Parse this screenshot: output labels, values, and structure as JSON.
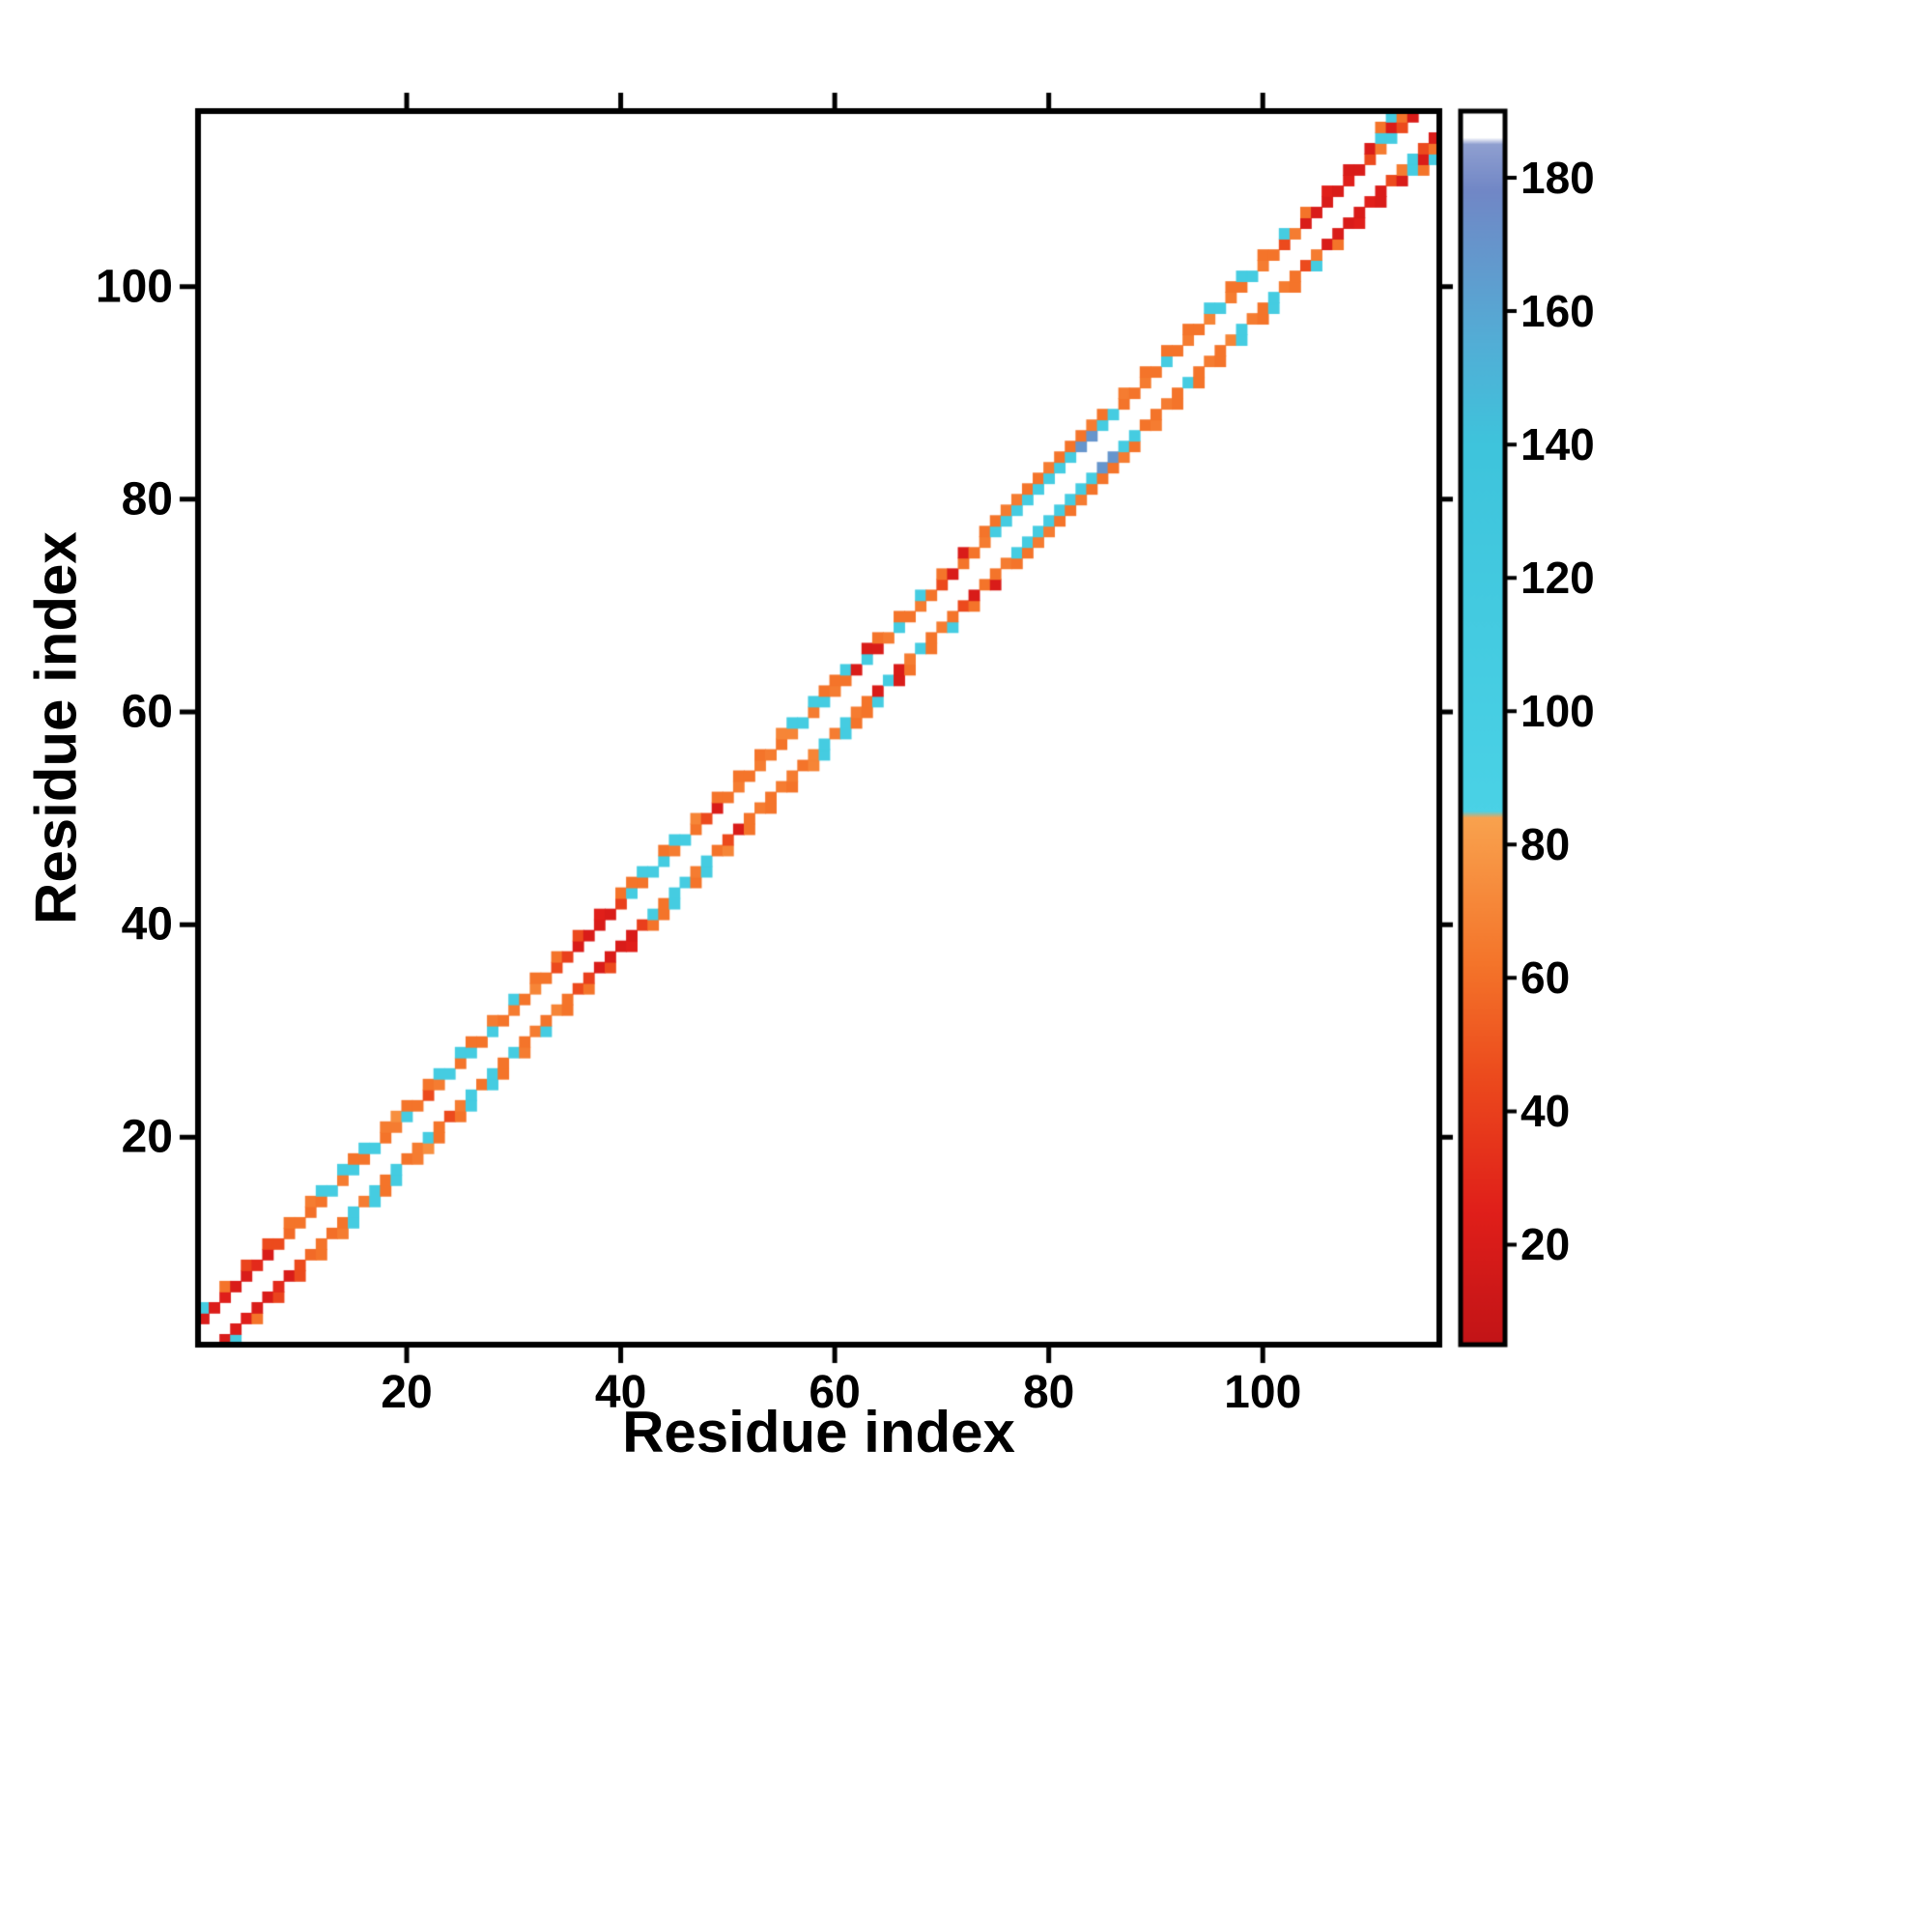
{
  "chart_data": {
    "type": "heatmap",
    "title": "",
    "xlabel": "Residue index",
    "ylabel": "Residue index",
    "xlim": [
      0.5,
      116.5
    ],
    "ylim": [
      0.5,
      116.5
    ],
    "x_ticks": [
      20,
      40,
      60,
      80,
      100
    ],
    "y_ticks": [
      20,
      40,
      60,
      80,
      100
    ],
    "grid": false,
    "symmetric": true,
    "background_value_color": "#ffffff",
    "colorbar": {
      "ticks": [
        20,
        40,
        60,
        80,
        100,
        120,
        140,
        160,
        180
      ],
      "vmin": 5,
      "vmax": 190,
      "stops": [
        [
          5,
          "#c21417"
        ],
        [
          25,
          "#e01f1a"
        ],
        [
          45,
          "#ec4a1d"
        ],
        [
          62,
          "#f4742a"
        ],
        [
          84,
          "#f9a24e"
        ],
        [
          85,
          "#4ad2e6"
        ],
        [
          140,
          "#3ec4dc"
        ],
        [
          155,
          "#52aed6"
        ],
        [
          178,
          "#7187c6"
        ],
        [
          185,
          "#8f9fd0"
        ],
        [
          186,
          "#ffffff"
        ],
        [
          190,
          "#ffffff"
        ]
      ]
    },
    "cells": [
      [
        1,
        3,
        20
      ],
      [
        1,
        4,
        110
      ],
      [
        2,
        4,
        22
      ],
      [
        3,
        5,
        24
      ],
      [
        3,
        6,
        62
      ],
      [
        4,
        6,
        20
      ],
      [
        5,
        7,
        20
      ],
      [
        5,
        8,
        42
      ],
      [
        6,
        8,
        30
      ],
      [
        7,
        9,
        20
      ],
      [
        7,
        10,
        45
      ],
      [
        8,
        10,
        45
      ],
      [
        9,
        11,
        58
      ],
      [
        9,
        12,
        62
      ],
      [
        10,
        12,
        62
      ],
      [
        11,
        13,
        60
      ],
      [
        11,
        14,
        66
      ],
      [
        12,
        14,
        62
      ],
      [
        12,
        15,
        110
      ],
      [
        13,
        15,
        110
      ],
      [
        14,
        16,
        66
      ],
      [
        14,
        17,
        110
      ],
      [
        15,
        17,
        110
      ],
      [
        15,
        18,
        62
      ],
      [
        16,
        18,
        62
      ],
      [
        16,
        19,
        110
      ],
      [
        17,
        19,
        110
      ],
      [
        18,
        20,
        62
      ],
      [
        18,
        21,
        66
      ],
      [
        19,
        21,
        66
      ],
      [
        19,
        22,
        75
      ],
      [
        20,
        22,
        110
      ],
      [
        20,
        23,
        62
      ],
      [
        21,
        23,
        62
      ],
      [
        22,
        24,
        45
      ],
      [
        22,
        25,
        62
      ],
      [
        23,
        25,
        66
      ],
      [
        23,
        26,
        110
      ],
      [
        24,
        26,
        110
      ],
      [
        25,
        27,
        62
      ],
      [
        25,
        28,
        110
      ],
      [
        26,
        28,
        110
      ],
      [
        26,
        29,
        62
      ],
      [
        27,
        29,
        62
      ],
      [
        28,
        30,
        110
      ],
      [
        28,
        31,
        66
      ],
      [
        29,
        31,
        62
      ],
      [
        30,
        32,
        66
      ],
      [
        30,
        33,
        110
      ],
      [
        31,
        33,
        62
      ],
      [
        32,
        34,
        70
      ],
      [
        32,
        35,
        62
      ],
      [
        33,
        35,
        62
      ],
      [
        34,
        36,
        45
      ],
      [
        34,
        37,
        62
      ],
      [
        35,
        37,
        40
      ],
      [
        36,
        38,
        20
      ],
      [
        36,
        39,
        45
      ],
      [
        37,
        39,
        20
      ],
      [
        38,
        40,
        20
      ],
      [
        38,
        41,
        25
      ],
      [
        39,
        41,
        20
      ],
      [
        40,
        42,
        40
      ],
      [
        40,
        43,
        62
      ],
      [
        41,
        43,
        110
      ],
      [
        41,
        44,
        62
      ],
      [
        42,
        44,
        62
      ],
      [
        42,
        45,
        110
      ],
      [
        43,
        45,
        110
      ],
      [
        44,
        46,
        110
      ],
      [
        44,
        47,
        62
      ],
      [
        45,
        47,
        66
      ],
      [
        45,
        48,
        110
      ],
      [
        46,
        48,
        110
      ],
      [
        47,
        49,
        62
      ],
      [
        47,
        50,
        70
      ],
      [
        48,
        50,
        45
      ],
      [
        49,
        51,
        20
      ],
      [
        49,
        52,
        62
      ],
      [
        50,
        52,
        62
      ],
      [
        51,
        53,
        66
      ],
      [
        51,
        54,
        62
      ],
      [
        52,
        54,
        62
      ],
      [
        53,
        55,
        66
      ],
      [
        53,
        56,
        62
      ],
      [
        54,
        56,
        66
      ],
      [
        55,
        57,
        62
      ],
      [
        55,
        58,
        70
      ],
      [
        56,
        58,
        70
      ],
      [
        56,
        59,
        110
      ],
      [
        57,
        59,
        110
      ],
      [
        58,
        60,
        66
      ],
      [
        58,
        61,
        110
      ],
      [
        59,
        61,
        110
      ],
      [
        59,
        62,
        62
      ],
      [
        60,
        62,
        66
      ],
      [
        60,
        63,
        62
      ],
      [
        61,
        63,
        62
      ],
      [
        61,
        64,
        110
      ],
      [
        62,
        64,
        20
      ],
      [
        63,
        65,
        110
      ],
      [
        63,
        66,
        20
      ],
      [
        64,
        66,
        20
      ],
      [
        64,
        67,
        62
      ],
      [
        65,
        67,
        66
      ],
      [
        66,
        68,
        110
      ],
      [
        66,
        69,
        62
      ],
      [
        67,
        69,
        62
      ],
      [
        68,
        70,
        66
      ],
      [
        68,
        71,
        110
      ],
      [
        69,
        71,
        62
      ],
      [
        70,
        72,
        45
      ],
      [
        70,
        73,
        62
      ],
      [
        71,
        73,
        20
      ],
      [
        72,
        74,
        62
      ],
      [
        72,
        75,
        20
      ],
      [
        73,
        75,
        62
      ],
      [
        74,
        76,
        66
      ],
      [
        74,
        77,
        62
      ],
      [
        75,
        77,
        110
      ],
      [
        75,
        78,
        62
      ],
      [
        76,
        78,
        110
      ],
      [
        76,
        79,
        66
      ],
      [
        77,
        79,
        110
      ],
      [
        77,
        80,
        66
      ],
      [
        78,
        80,
        110
      ],
      [
        78,
        81,
        62
      ],
      [
        79,
        81,
        110
      ],
      [
        79,
        82,
        62
      ],
      [
        80,
        82,
        110
      ],
      [
        80,
        83,
        66
      ],
      [
        81,
        83,
        110
      ],
      [
        81,
        84,
        62
      ],
      [
        82,
        84,
        110
      ],
      [
        82,
        85,
        62
      ],
      [
        83,
        85,
        170
      ],
      [
        83,
        86,
        62
      ],
      [
        84,
        86,
        170
      ],
      [
        84,
        87,
        66
      ],
      [
        85,
        87,
        110
      ],
      [
        85,
        88,
        62
      ],
      [
        86,
        88,
        110
      ],
      [
        87,
        89,
        62
      ],
      [
        87,
        90,
        66
      ],
      [
        88,
        90,
        62
      ],
      [
        89,
        91,
        66
      ],
      [
        89,
        92,
        62
      ],
      [
        90,
        92,
        62
      ],
      [
        91,
        93,
        110
      ],
      [
        91,
        94,
        62
      ],
      [
        92,
        94,
        62
      ],
      [
        93,
        95,
        66
      ],
      [
        93,
        96,
        62
      ],
      [
        94,
        96,
        62
      ],
      [
        95,
        97,
        70
      ],
      [
        95,
        98,
        110
      ],
      [
        96,
        98,
        110
      ],
      [
        97,
        99,
        66
      ],
      [
        97,
        100,
        62
      ],
      [
        98,
        100,
        62
      ],
      [
        98,
        101,
        110
      ],
      [
        99,
        101,
        110
      ],
      [
        100,
        102,
        66
      ],
      [
        100,
        103,
        62
      ],
      [
        101,
        103,
        62
      ],
      [
        102,
        104,
        45
      ],
      [
        102,
        105,
        110
      ],
      [
        103,
        105,
        66
      ],
      [
        104,
        106,
        20
      ],
      [
        104,
        107,
        62
      ],
      [
        105,
        107,
        20
      ],
      [
        106,
        108,
        20
      ],
      [
        106,
        109,
        25
      ],
      [
        107,
        109,
        20
      ],
      [
        108,
        110,
        25
      ],
      [
        108,
        111,
        20
      ],
      [
        109,
        111,
        20
      ],
      [
        110,
        112,
        45
      ],
      [
        110,
        113,
        20
      ],
      [
        111,
        113,
        66
      ],
      [
        111,
        114,
        110
      ],
      [
        111,
        115,
        62
      ],
      [
        112,
        114,
        110
      ],
      [
        112,
        115,
        20
      ],
      [
        112,
        116,
        110
      ],
      [
        113,
        115,
        45
      ],
      [
        113,
        116,
        62
      ],
      [
        114,
        116,
        20
      ]
    ]
  }
}
